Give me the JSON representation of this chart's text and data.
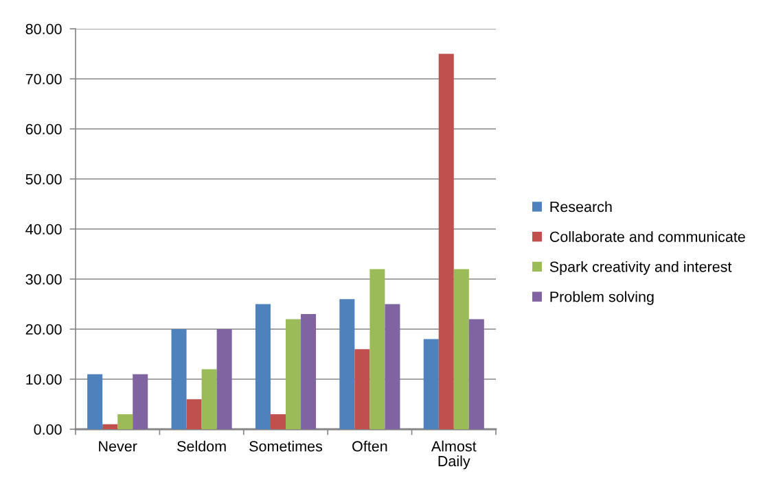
{
  "chart_data": {
    "type": "bar",
    "categories": [
      "Never",
      "Seldom",
      "Sometimes",
      "Often",
      "Almost Daily"
    ],
    "series": [
      {
        "name": "Research",
        "color": "#4f81bd",
        "values": [
          11,
          20,
          25,
          26,
          18
        ]
      },
      {
        "name": "Collaborate and communicate",
        "color": "#c0504d",
        "values": [
          1,
          6,
          3,
          16,
          75
        ]
      },
      {
        "name": "Spark creativity and interest",
        "color": "#9bbb59",
        "values": [
          3,
          12,
          22,
          32,
          32
        ]
      },
      {
        "name": "Problem solving",
        "color": "#8064a2",
        "values": [
          11,
          20,
          23,
          25,
          22
        ]
      }
    ],
    "ylim": [
      0,
      80
    ],
    "yticks": [
      {
        "value": 0,
        "label": "0.00"
      },
      {
        "value": 10,
        "label": "10.00"
      },
      {
        "value": 20,
        "label": "20.00"
      },
      {
        "value": 30,
        "label": "30.00"
      },
      {
        "value": 40,
        "label": "40.00"
      },
      {
        "value": 50,
        "label": "50.00"
      },
      {
        "value": 60,
        "label": "60.00"
      },
      {
        "value": 70,
        "label": "70.00"
      },
      {
        "value": 80,
        "label": "80.00"
      }
    ],
    "grid": "y",
    "legend": "right"
  }
}
